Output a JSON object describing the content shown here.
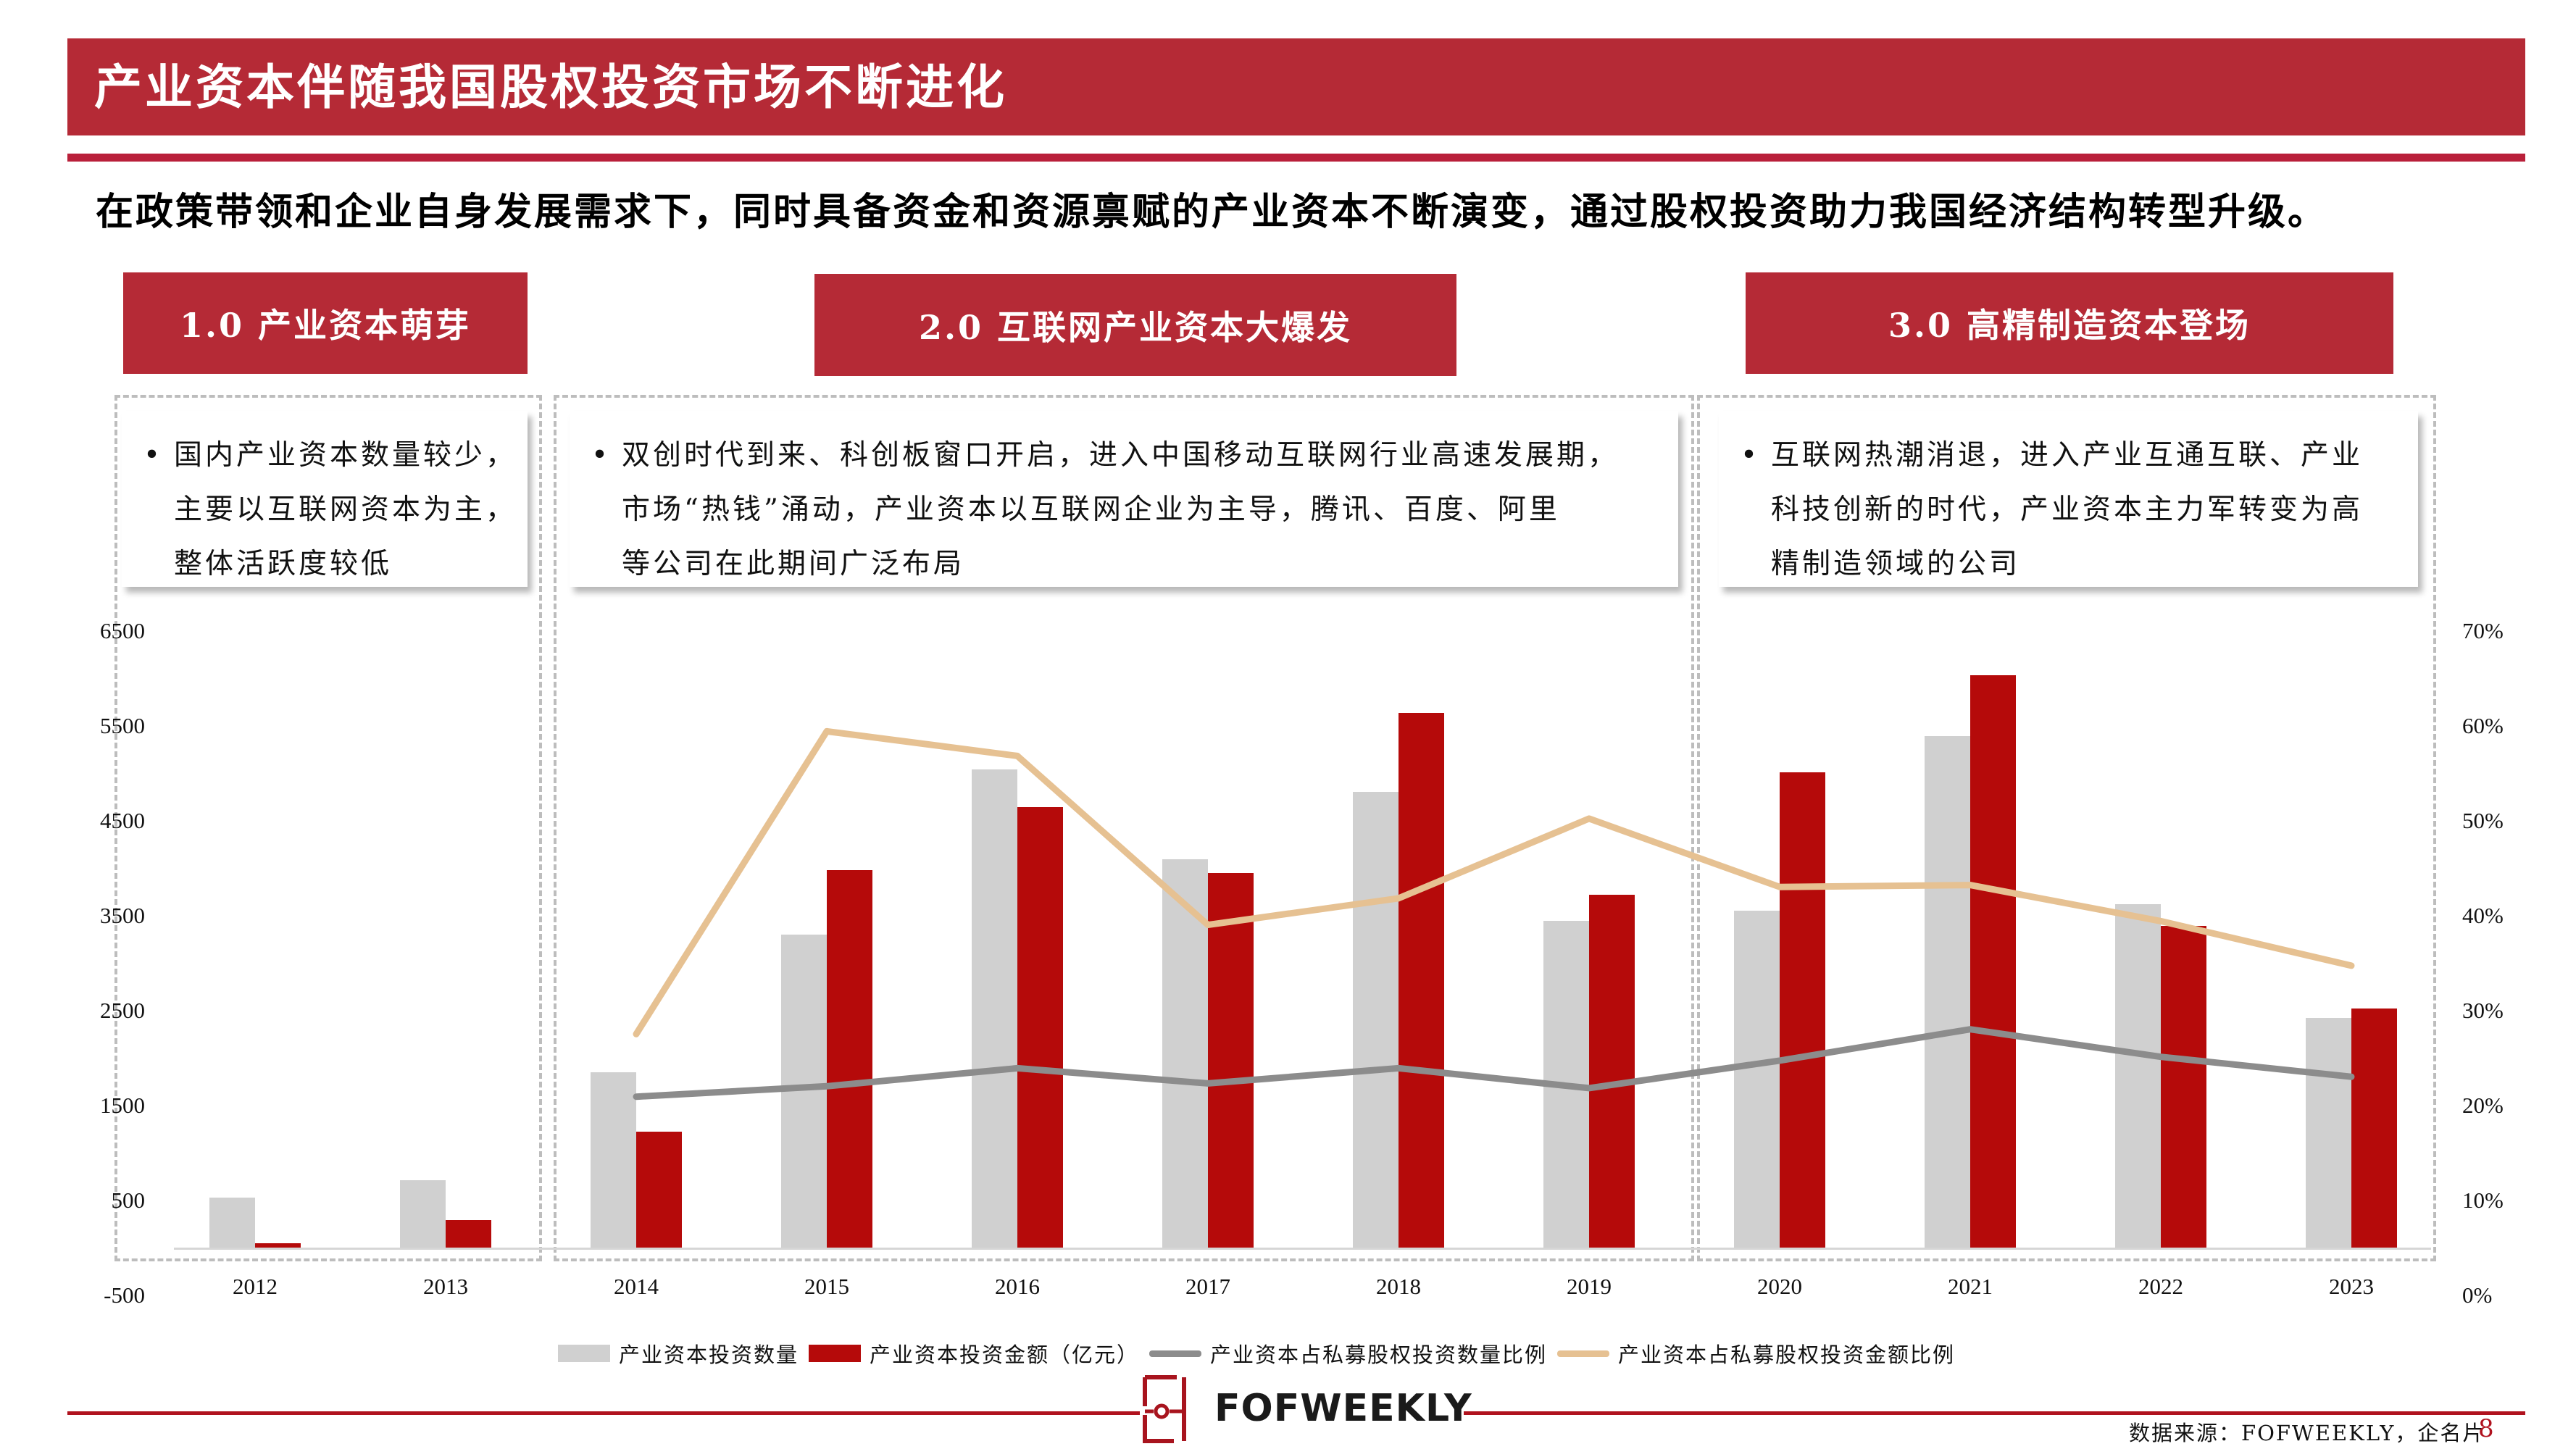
{
  "header": {
    "title": "产业资本伴随我国股权投资市场不断进化",
    "subtitle": "在政策带领和企业自身发展需求下，同时具备资金和资源禀赋的产业资本不断演变，通过股权投资助力我国经济结构转型升级。"
  },
  "phases": [
    {
      "label": "1.0  产业资本萌芽",
      "lines": [
        "国内产业资本数量较少，",
        "主要以互联网资本为主，",
        "整体活跃度较低"
      ]
    },
    {
      "label": "2.0  互联网产业资本大爆发",
      "lines": [
        "双创时代到来、科创板窗口开启，进入中国移动互联网行业高速发展期，",
        "市场“热钱”涌动，产业资本以互联网企业为主导，腾讯、百度、阿里",
        "等公司在此期间广泛布局"
      ]
    },
    {
      "label": "3.0  高精制造资本登场",
      "lines": [
        "互联网热潮消退，进入产业互通互联、产业",
        "科技创新的时代，产业资本主力军转变为高",
        "精制造领域的公司"
      ]
    }
  ],
  "bullet": "•",
  "legend": [
    {
      "label": "产业资本投资数量",
      "kind": "box",
      "color": "#D0D0D0"
    },
    {
      "label": "产业资本投资金额（亿元）",
      "kind": "box",
      "color": "#B50A0A"
    },
    {
      "label": "产业资本占私募股权投资数量比例",
      "kind": "line",
      "color": "#8C8C8C"
    },
    {
      "label": "产业资本占私募股权投资金额比例",
      "kind": "line",
      "color": "#E6C192"
    }
  ],
  "footer": {
    "logo_text": "FOFWEEKLY",
    "source": "数据来源：FOFWEEKLY，企名片",
    "page_number": "8"
  },
  "colors": {
    "brand_red": "#B52A36",
    "bar_gray": "#D0D0D0",
    "bar_red": "#B50A0A",
    "line_gray": "#8C8C8C",
    "line_tan": "#E6C192"
  },
  "chart_data": {
    "type": "bar",
    "title": "",
    "xlabel": "",
    "ylabel": "",
    "categories": [
      "2012",
      "2013",
      "2014",
      "2015",
      "2016",
      "2017",
      "2018",
      "2019",
      "2020",
      "2021",
      "2022",
      "2023"
    ],
    "series": [
      {
        "name": "产业资本投资数量",
        "type": "bar",
        "axis": "left",
        "values": [
          530,
          710,
          1850,
          3300,
          5040,
          4090,
          4800,
          3440,
          3550,
          5390,
          3620,
          2420
        ]
      },
      {
        "name": "产业资本投资金额（亿元）",
        "type": "bar",
        "axis": "left",
        "values": [
          45,
          290,
          1220,
          3980,
          4640,
          3950,
          5630,
          3720,
          5010,
          6030,
          3390,
          2520
        ]
      },
      {
        "name": "产业资本占私募股权投资数量比例",
        "type": "line",
        "axis": "right",
        "values": [
          null,
          null,
          20.9,
          22.0,
          23.9,
          22.3,
          23.9,
          21.8,
          24.7,
          28.0,
          25.1,
          23.0
        ]
      },
      {
        "name": "产业资本占私募股权投资金额比例",
        "type": "line",
        "axis": "right",
        "values": [
          null,
          null,
          27.5,
          59.4,
          56.8,
          39.0,
          41.8,
          50.2,
          43.0,
          43.2,
          39.4,
          34.7
        ]
      }
    ],
    "y_left": {
      "ticks": [
        "6500",
        "5500",
        "4500",
        "3500",
        "2500",
        "1500",
        "500",
        "-500"
      ],
      "range": [
        -500,
        6500
      ]
    },
    "y_right": {
      "ticks": [
        "70%",
        "60%",
        "50%",
        "40%",
        "30%",
        "20%",
        "10%",
        "0%"
      ],
      "range": [
        0,
        70
      ],
      "unit": "%"
    },
    "grid": false,
    "legend_position": "bottom",
    "phase_groups": [
      {
        "phase": "1.0",
        "years": [
          "2012",
          "2013"
        ]
      },
      {
        "phase": "2.0",
        "years": [
          "2014",
          "2015",
          "2016",
          "2017",
          "2018",
          "2019"
        ]
      },
      {
        "phase": "3.0",
        "years": [
          "2020",
          "2021",
          "2022",
          "2023"
        ]
      }
    ]
  }
}
